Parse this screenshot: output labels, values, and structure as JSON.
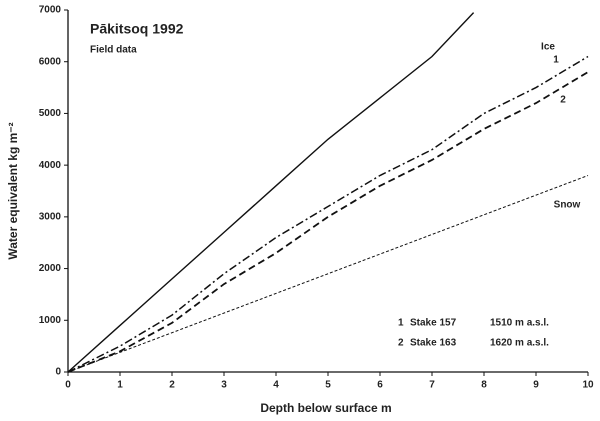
{
  "chart_data": {
    "type": "line",
    "title": "Pākitsoq 1992",
    "subtitle": "Field data",
    "xlabel": "Depth below surface m",
    "ylabel": "Water equivalent kg m⁻²",
    "xlim": [
      0,
      10
    ],
    "ylim": [
      0,
      7000
    ],
    "xticks": [
      0,
      1,
      2,
      3,
      4,
      5,
      6,
      7,
      8,
      9,
      10
    ],
    "yticks": [
      0,
      1000,
      2000,
      3000,
      4000,
      5000,
      6000,
      7000
    ],
    "grid": false,
    "series": [
      {
        "name": "Ice",
        "color": "#111111",
        "dash": "solid",
        "x": [
          0,
          1,
          2,
          3,
          4,
          5,
          6,
          7,
          7.8
        ],
        "values": [
          0,
          900,
          1800,
          2700,
          3600,
          4500,
          5300,
          6100,
          6950
        ]
      },
      {
        "name": "1",
        "color": "#111111",
        "dash": "dashdot",
        "x": [
          0,
          1,
          2,
          3,
          4,
          5,
          5.5,
          6,
          7,
          8,
          9,
          10
        ],
        "values": [
          0,
          500,
          1100,
          1900,
          2600,
          3200,
          3500,
          3800,
          4300,
          5000,
          5500,
          6100
        ]
      },
      {
        "name": "2",
        "color": "#111111",
        "dash": "dash",
        "x": [
          0,
          1,
          2,
          3,
          4,
          5,
          6,
          7,
          8,
          9,
          10
        ],
        "values": [
          0,
          400,
          950,
          1700,
          2300,
          3000,
          3600,
          4100,
          4700,
          5200,
          5800
        ]
      },
      {
        "name": "Snow",
        "color": "#111111",
        "dash": "dot",
        "x": [
          0,
          10
        ],
        "values": [
          0,
          3800
        ]
      }
    ],
    "legend": [
      {
        "key": "1",
        "stake": "Stake 157",
        "elevation": "1510 m a.s.l."
      },
      {
        "key": "2",
        "stake": "Stake 163",
        "elevation": "1620 m a.s.l."
      }
    ]
  }
}
